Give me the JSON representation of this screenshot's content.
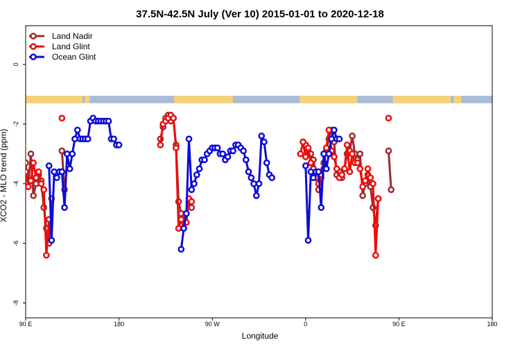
{
  "chart_data": {
    "type": "line",
    "title": "37.5N-42.5N July (Ver 10)   2015-01-01 to 2020-12-18",
    "xlabel": "Longitude",
    "ylabel": "XCO2 - MLO trend (ppm)",
    "xlim": [
      90,
      450
    ],
    "ylim": [
      -8.5,
      1.3
    ],
    "x_ticks": [
      {
        "value": 90,
        "label": "90 E"
      },
      {
        "value": 180,
        "label": "180"
      },
      {
        "value": 270,
        "label": "90 W"
      },
      {
        "value": 360,
        "label": "0"
      },
      {
        "value": 450,
        "label": "90 E"
      },
      {
        "value": 540,
        "label": "180"
      }
    ],
    "y_ticks": [
      {
        "value": 0,
        "label": "0"
      },
      {
        "value": -2,
        "label": "-2"
      },
      {
        "value": -4,
        "label": "-4"
      },
      {
        "value": -6,
        "label": "-6"
      },
      {
        "value": -8,
        "label": "-8"
      }
    ],
    "x_display_range": [
      90,
      540
    ],
    "legend_position": "top-left",
    "grid": false,
    "land_ocean_strip": {
      "y_range": [
        -1.3,
        -1.05
      ],
      "land_color": "#f5d27a",
      "ocean_color": "#a9bcd8",
      "land_ranges": [
        [
          90,
          145
        ],
        [
          147,
          152
        ],
        [
          233,
          290
        ],
        [
          354,
          410
        ],
        [
          444,
          500
        ],
        [
          503,
          510
        ]
      ]
    },
    "series": [
      {
        "name": "Land Nadir",
        "color": "#a0282d",
        "points": [
          [
            90,
            -3.3
          ],
          [
            92.5,
            -4.1
          ],
          [
            95,
            -3.0
          ],
          [
            97.5,
            -4.4
          ],
          [
            100,
            -4.0
          ],
          [
            102.5,
            -3.7
          ],
          [
            105,
            -3.9
          ],
          [
            107.5,
            -4.8
          ],
          [
            110,
            -5.5
          ],
          [
            112.5,
            -6.0
          ],
          [
            115,
            -4.5
          ],
          [
            125,
            -2.9
          ],
          [
            127.5,
            -4.2
          ],
          [
            220,
            -2.5
          ],
          [
            222.5,
            -2.1
          ],
          [
            225,
            -1.8
          ],
          [
            227.5,
            -1.7
          ],
          [
            230,
            -1.9
          ],
          [
            232.5,
            -1.8
          ],
          [
            235,
            -2.7
          ],
          [
            237.5,
            -4.6
          ],
          [
            240,
            -5.0
          ],
          [
            242.5,
            -5.2
          ],
          [
            245,
            -5.0
          ],
          [
            247.5,
            -4.6
          ],
          [
            250,
            -4.8
          ],
          [
            357.5,
            -2.6
          ],
          [
            360,
            -2.7
          ],
          [
            362.5,
            -2.9
          ],
          [
            365,
            -3.0
          ],
          [
            367.5,
            -3.2
          ],
          [
            370,
            -3.7
          ],
          [
            372.5,
            -4.2
          ],
          [
            375,
            -3.8
          ],
          [
            377.5,
            -3.3
          ],
          [
            380,
            -2.9
          ],
          [
            382.5,
            -2.5
          ],
          [
            385,
            -2.2
          ],
          [
            387.5,
            -2.6
          ],
          [
            390,
            -3.7
          ],
          [
            392.5,
            -3.6
          ],
          [
            395,
            -3.8
          ],
          [
            397.5,
            -3.5
          ],
          [
            400,
            -3.0
          ],
          [
            402.5,
            -2.9
          ],
          [
            405,
            -2.4
          ],
          [
            407.5,
            -3.0
          ],
          [
            410,
            -3.2
          ],
          [
            412.5,
            -3.0
          ],
          [
            415,
            -4.4
          ],
          [
            417.5,
            -4.0
          ],
          [
            420,
            -3.7
          ],
          [
            422.5,
            -4.1
          ],
          [
            425,
            -4.8
          ],
          [
            427.5,
            -5.4
          ],
          [
            430,
            -4.5
          ],
          [
            440,
            -2.9
          ],
          [
            442.5,
            -4.2
          ]
        ]
      },
      {
        "name": "Land Glint",
        "color": "#ee0c0c",
        "points": [
          [
            90,
            -3.6
          ],
          [
            92.5,
            -4.1
          ],
          [
            95,
            -3.9
          ],
          [
            97.5,
            -3.3
          ],
          [
            100,
            -3.8
          ],
          [
            102.5,
            -3.6
          ],
          [
            105,
            -4.0
          ],
          [
            107.5,
            -4.2
          ],
          [
            110,
            -6.4
          ],
          [
            112.5,
            -5.2
          ],
          [
            125,
            -1.8
          ],
          [
            220,
            -2.7
          ],
          [
            222.5,
            -2.0
          ],
          [
            225,
            -1.9
          ],
          [
            227.5,
            -1.8
          ],
          [
            230,
            -1.7
          ],
          [
            232.5,
            -1.8
          ],
          [
            235,
            -2.8
          ],
          [
            237.5,
            -5.5
          ],
          [
            240,
            -5.2
          ],
          [
            242.5,
            -5.5
          ],
          [
            245,
            -5.3
          ],
          [
            247.5,
            -4.5
          ],
          [
            250,
            -4.6
          ],
          [
            355,
            -3.0
          ],
          [
            357.5,
            -2.6
          ],
          [
            360,
            -3.1
          ],
          [
            362.5,
            -2.8
          ],
          [
            365,
            -3.3
          ],
          [
            367.5,
            -3.5
          ],
          [
            370,
            -3.8
          ],
          [
            372.5,
            -4.0
          ],
          [
            375,
            -3.7
          ],
          [
            377.5,
            -3.5
          ],
          [
            380,
            -2.8
          ],
          [
            382.5,
            -2.2
          ],
          [
            385,
            -2.9
          ],
          [
            387.5,
            -3.1
          ],
          [
            390,
            -3.5
          ],
          [
            392.5,
            -3.8
          ],
          [
            395,
            -3.7
          ],
          [
            397.5,
            -3.5
          ],
          [
            400,
            -2.7
          ],
          [
            402.5,
            -3.6
          ],
          [
            405,
            -3.0
          ],
          [
            407.5,
            -3.3
          ],
          [
            410,
            -3.3
          ],
          [
            412.5,
            -3.5
          ],
          [
            415,
            -4.1
          ],
          [
            417.5,
            -3.9
          ],
          [
            420,
            -3.5
          ],
          [
            422.5,
            -3.8
          ],
          [
            425,
            -4.0
          ],
          [
            427.5,
            -6.4
          ],
          [
            430,
            -4.5
          ],
          [
            440,
            -1.8
          ]
        ]
      },
      {
        "name": "Ocean Glint",
        "color": "#0b0bd8",
        "points": [
          [
            112.5,
            -3.4
          ],
          [
            115,
            -5.9
          ],
          [
            117.5,
            -3.6
          ],
          [
            120,
            -3.8
          ],
          [
            122.5,
            -3.6
          ],
          [
            125,
            -3.6
          ],
          [
            127.5,
            -4.8
          ],
          [
            130,
            -3.0
          ],
          [
            132.5,
            -3.5
          ],
          [
            135,
            -3.0
          ],
          [
            137.5,
            -2.5
          ],
          [
            140,
            -2.2
          ],
          [
            142.5,
            -2.5
          ],
          [
            145,
            -2.5
          ],
          [
            147.5,
            -2.5
          ],
          [
            150,
            -2.5
          ],
          [
            152.5,
            -1.9
          ],
          [
            155,
            -1.8
          ],
          [
            157.5,
            -1.9
          ],
          [
            160,
            -1.9
          ],
          [
            162.5,
            -1.9
          ],
          [
            165,
            -1.9
          ],
          [
            167.5,
            -1.9
          ],
          [
            170,
            -1.9
          ],
          [
            172.5,
            -2.5
          ],
          [
            175,
            -2.5
          ],
          [
            177.5,
            -2.7
          ],
          [
            180,
            -2.7
          ],
          [
            240,
            -6.2
          ],
          [
            242.5,
            -5.5
          ],
          [
            245,
            -5.0
          ],
          [
            247.5,
            -2.5
          ],
          [
            250,
            -4.2
          ],
          [
            252.5,
            -4.0
          ],
          [
            255,
            -3.7
          ],
          [
            257.5,
            -3.5
          ],
          [
            260,
            -3.2
          ],
          [
            262.5,
            -3.2
          ],
          [
            265,
            -3.0
          ],
          [
            267.5,
            -2.9
          ],
          [
            270,
            -2.8
          ],
          [
            272.5,
            -2.8
          ],
          [
            275,
            -2.8
          ],
          [
            277.5,
            -3.0
          ],
          [
            280,
            -3.0
          ],
          [
            282.5,
            -3.2
          ],
          [
            285,
            -3.1
          ],
          [
            287.5,
            -2.9
          ],
          [
            290,
            -2.9
          ],
          [
            292.5,
            -2.7
          ],
          [
            295,
            -2.7
          ],
          [
            297.5,
            -2.8
          ],
          [
            300,
            -2.9
          ],
          [
            302.5,
            -3.2
          ],
          [
            305,
            -3.6
          ],
          [
            307.5,
            -3.8
          ],
          [
            310,
            -4.0
          ],
          [
            312.5,
            -4.4
          ],
          [
            315,
            -4.0
          ],
          [
            317.5,
            -2.4
          ],
          [
            320,
            -2.6
          ],
          [
            322.5,
            -3.3
          ],
          [
            325,
            -3.7
          ],
          [
            327.5,
            -3.8
          ],
          [
            360,
            -3.4
          ],
          [
            362.5,
            -5.9
          ],
          [
            365,
            -3.6
          ],
          [
            367.5,
            -3.8
          ],
          [
            370,
            -3.6
          ],
          [
            372.5,
            -3.6
          ],
          [
            375,
            -4.8
          ],
          [
            377.5,
            -3.0
          ],
          [
            380,
            -3.5
          ],
          [
            382.5,
            -3.0
          ],
          [
            385,
            -2.5
          ],
          [
            387.5,
            -2.2
          ],
          [
            390,
            -2.5
          ],
          [
            392.5,
            -2.5
          ]
        ]
      }
    ]
  },
  "legend": {
    "items": [
      {
        "label": "Land Nadir",
        "color": "#a0282d"
      },
      {
        "label": "Land Glint",
        "color": "#ee0c0c"
      },
      {
        "label": "Ocean Glint",
        "color": "#0b0bd8"
      }
    ]
  }
}
